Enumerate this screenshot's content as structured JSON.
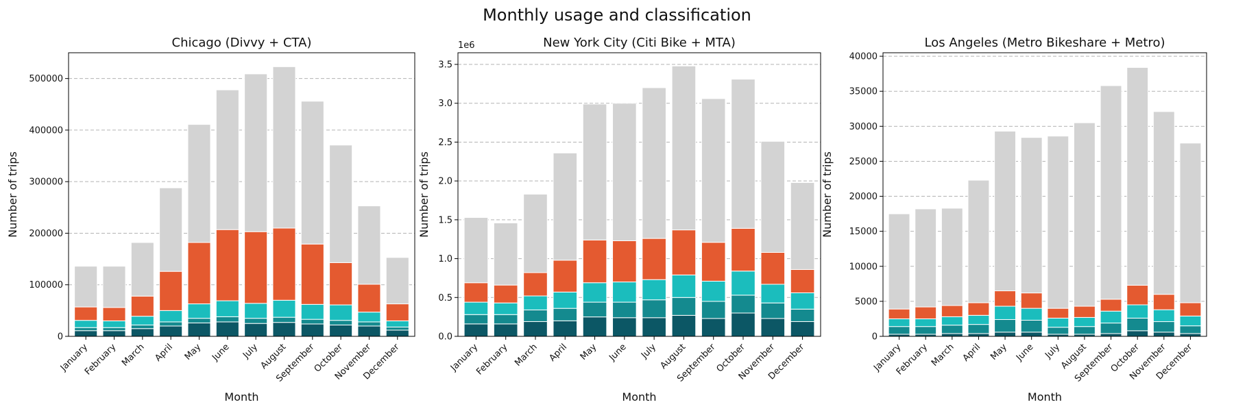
{
  "figure": {
    "title": "Monthly usage and classification"
  },
  "palette": {
    "grey": "#d3d3d3",
    "orange": "#e45a30",
    "turquoise": "#1bbdbd",
    "teal": "#148a8f",
    "dark_teal": "#0c5765",
    "grid": "#b3b3b3"
  },
  "chart_data": [
    {
      "type": "bar",
      "stacked": true,
      "title": "Chicago (Divvy + CTA)",
      "xlabel": "Month",
      "ylabel": "Number of trips",
      "ylim": [
        0,
        550000
      ],
      "yticks": [
        0,
        100000,
        200000,
        300000,
        400000,
        500000
      ],
      "ytick_labels": [
        "0",
        "100000",
        "200000",
        "300000",
        "400000",
        "500000"
      ],
      "offset_label": "",
      "grid": "y-dashed",
      "categories": [
        "January",
        "February",
        "March",
        "April",
        "May",
        "June",
        "July",
        "August",
        "September",
        "October",
        "November",
        "December"
      ],
      "series": [
        {
          "color": "dark_teal",
          "values": [
            11000,
            11000,
            15000,
            20000,
            26000,
            28000,
            25000,
            27000,
            24000,
            22000,
            20000,
            12000
          ]
        },
        {
          "color": "teal",
          "values": [
            6000,
            6000,
            7000,
            8000,
            9000,
            10000,
            10000,
            10000,
            9000,
            9000,
            8000,
            6000
          ]
        },
        {
          "color": "turquoise",
          "values": [
            14000,
            13000,
            17000,
            22000,
            28000,
            31000,
            29000,
            33000,
            29000,
            30000,
            19000,
            12000
          ]
        },
        {
          "color": "orange",
          "values": [
            26000,
            26000,
            39000,
            76000,
            119000,
            138000,
            139000,
            140000,
            117000,
            82000,
            54000,
            33000
          ]
        },
        {
          "color": "grey",
          "values": [
            79000,
            80000,
            104000,
            162000,
            229000,
            271000,
            306000,
            313000,
            277000,
            228000,
            152000,
            90000
          ]
        }
      ]
    },
    {
      "type": "bar",
      "stacked": true,
      "title": "New York City (Citi Bike + MTA)",
      "xlabel": "Month",
      "ylabel": "Number of trips",
      "ylim": [
        0,
        3.65
      ],
      "yticks": [
        0,
        0.5,
        1.0,
        1.5,
        2.0,
        2.5,
        3.0,
        3.5
      ],
      "ytick_labels": [
        "0.0",
        "0.5",
        "1.0",
        "1.5",
        "2.0",
        "2.5",
        "3.0",
        "3.5"
      ],
      "offset_label": "1e6",
      "grid": "y-dashed",
      "categories": [
        "January",
        "February",
        "March",
        "April",
        "May",
        "June",
        "July",
        "August",
        "September",
        "October",
        "November",
        "December"
      ],
      "series": [
        {
          "color": "dark_teal",
          "values": [
            0.16,
            0.16,
            0.19,
            0.2,
            0.25,
            0.24,
            0.24,
            0.27,
            0.23,
            0.3,
            0.23,
            0.19
          ]
        },
        {
          "color": "teal",
          "values": [
            0.12,
            0.12,
            0.15,
            0.16,
            0.19,
            0.2,
            0.23,
            0.23,
            0.22,
            0.23,
            0.2,
            0.16
          ]
        },
        {
          "color": "turquoise",
          "values": [
            0.16,
            0.15,
            0.18,
            0.21,
            0.25,
            0.26,
            0.26,
            0.29,
            0.26,
            0.31,
            0.24,
            0.21
          ]
        },
        {
          "color": "orange",
          "values": [
            0.25,
            0.23,
            0.3,
            0.41,
            0.55,
            0.53,
            0.53,
            0.58,
            0.5,
            0.55,
            0.41,
            0.3
          ]
        },
        {
          "color": "grey",
          "values": [
            0.84,
            0.8,
            1.01,
            1.38,
            1.75,
            1.77,
            1.94,
            2.11,
            1.85,
            1.92,
            1.43,
            1.12
          ]
        }
      ]
    },
    {
      "type": "bar",
      "stacked": true,
      "title": "Los Angeles (Metro Bikeshare + Metro)",
      "xlabel": "Month",
      "ylabel": "Number of trips",
      "ylim": [
        0,
        40500
      ],
      "yticks": [
        0,
        5000,
        10000,
        15000,
        20000,
        25000,
        30000,
        35000,
        40000
      ],
      "ytick_labels": [
        "0",
        "5000",
        "10000",
        "15000",
        "20000",
        "25000",
        "30000",
        "35000",
        "40000"
      ],
      "offset_label": "",
      "grid": "y-dashed",
      "categories": [
        "January",
        "February",
        "March",
        "April",
        "May",
        "June",
        "July",
        "August",
        "September",
        "October",
        "November",
        "December"
      ],
      "series": [
        {
          "color": "dark_teal",
          "values": [
            300,
            300,
            400,
            400,
            600,
            600,
            300,
            300,
            400,
            800,
            600,
            400
          ]
        },
        {
          "color": "teal",
          "values": [
            1100,
            1100,
            1200,
            1300,
            1800,
            1700,
            1000,
            1100,
            1500,
            1800,
            1500,
            1100
          ]
        },
        {
          "color": "turquoise",
          "values": [
            1100,
            1100,
            1200,
            1300,
            1900,
            1700,
            1300,
            1300,
            1700,
            1900,
            1700,
            1400
          ]
        },
        {
          "color": "orange",
          "values": [
            1400,
            1700,
            1600,
            1800,
            2200,
            2200,
            1400,
            1600,
            1700,
            2800,
            2200,
            1900
          ]
        },
        {
          "color": "grey",
          "values": [
            13600,
            14000,
            13900,
            17500,
            22800,
            22200,
            24600,
            26200,
            30500,
            31100,
            26100,
            22800
          ]
        }
      ]
    }
  ]
}
